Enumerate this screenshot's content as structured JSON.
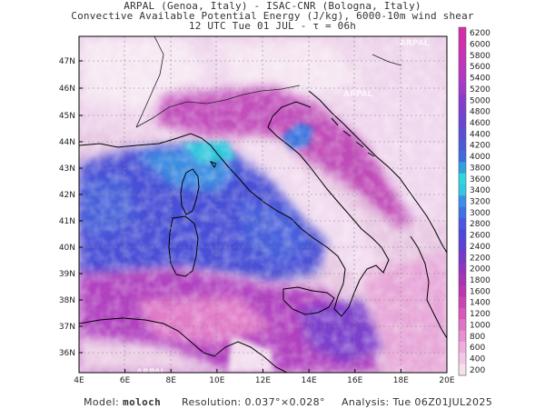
{
  "header": {
    "line1": "ARPAL (Genoa, Italy)  -  ISAC-CNR (Bologna, Italy)",
    "line2": "Convective Available Potential Energy (J/kg), 6000-10m wind shear",
    "line3": "12 UTC Tue 01 JUL  -  τ = 06h"
  },
  "map": {
    "lat_labels": [
      "47N",
      "46N",
      "45N",
      "44N",
      "43N",
      "42N",
      "41N",
      "40N",
      "39N",
      "38N",
      "37N",
      "36N"
    ],
    "lon_labels": [
      "4E",
      "6E",
      "8E",
      "10E",
      "12E",
      "14E",
      "16E",
      "18E",
      "20E"
    ],
    "watermark": "ARPAL"
  },
  "colorbar": {
    "labels": [
      "6200",
      "6000",
      "5800",
      "5600",
      "5400",
      "5200",
      "5000",
      "4800",
      "4600",
      "4400",
      "4200",
      "4000",
      "3800",
      "3600",
      "3400",
      "3200",
      "3000",
      "2800",
      "2600",
      "2400",
      "2200",
      "2000",
      "1800",
      "1600",
      "1400",
      "1200",
      "1000",
      "800",
      "600",
      "400",
      "200"
    ],
    "colors": [
      "#d42ea8",
      "#cf2fae",
      "#c832b6",
      "#bf35bf",
      "#b238c5",
      "#a03ac8",
      "#8b3bca",
      "#7a3fcd",
      "#6a45d0",
      "#5a4fd4",
      "#4a5cd8",
      "#3e6cdc",
      "#33a0e0",
      "#2ed8dc",
      "#33c6e6",
      "#3a90e8",
      "#4070e6",
      "#4858e2",
      "#5048da",
      "#6040d2",
      "#7838c8",
      "#9235be",
      "#a834b4",
      "#bc36b0",
      "#cc44b4",
      "#d858bc",
      "#e074c6",
      "#e890d2",
      "#eeaede",
      "#f2c8e6",
      "#f6e0ee"
    ]
  },
  "footer": {
    "model_label": "Model:",
    "model_value": "moloch",
    "resolution_label": "Resolution:",
    "resolution_value": "0.037°×0.028°",
    "analysis_label": "Analysis:",
    "analysis_value": "Tue 06Z01JUL2025"
  }
}
